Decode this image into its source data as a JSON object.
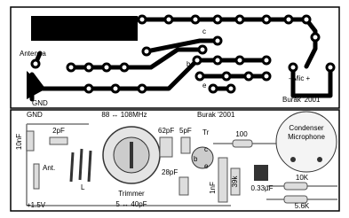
{
  "pcb_layout": {
    "supply": "+1.5V",
    "antenna": "Antenna",
    "collector": "c",
    "base": "b",
    "emitter": "e",
    "mic": "- Mic +",
    "ground": "GND",
    "author": "Burak '2001"
  },
  "component_layout": {
    "ground": "GND",
    "band": "88 ↔ 108MHz",
    "author": "Burak '2001",
    "c_10nf": "10nF",
    "c_2pf": "2pF",
    "antenna": "Ant.",
    "coil": "L",
    "trimmer": "Trimmer",
    "trimmer_range": "5 ↔ 40pF",
    "c_62pf": "62pF",
    "c_5pf": "5pF",
    "transistor": "Tr",
    "c_28pf": "28pF",
    "base": "b",
    "collector": "c",
    "emitter": "e",
    "c_1nf": "1nF",
    "r_39k": "39k",
    "r_100": "100",
    "microphone": [
      "Condenser",
      "Microphone"
    ],
    "c_033uf": "0.33µF",
    "r_10k": "10K",
    "r_5_6k": "5.6K",
    "supply": "+1.5V"
  }
}
